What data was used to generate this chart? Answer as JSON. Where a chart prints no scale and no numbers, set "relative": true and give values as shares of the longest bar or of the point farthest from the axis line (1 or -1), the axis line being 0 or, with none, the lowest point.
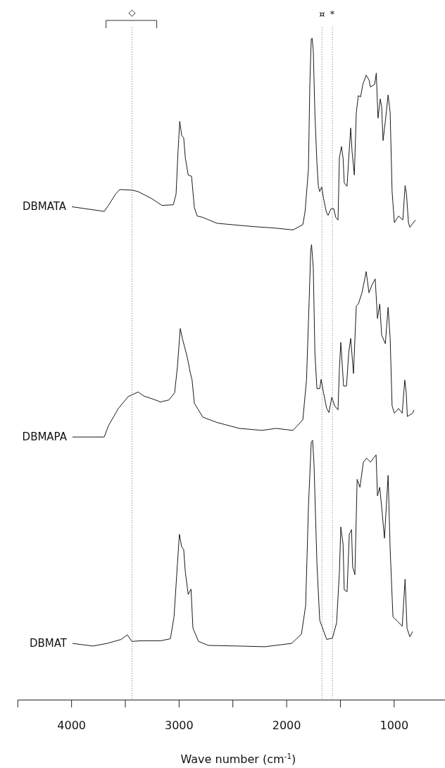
{
  "chart_data": {
    "type": "line",
    "relative": true,
    "xlabel": "Wave number (cm$^{-1}$)",
    "xlim": [
      4500,
      524
    ],
    "xticks": [
      {
        "value": 4500,
        "label": null
      },
      4000,
      {
        "value": 3500,
        "label": null
      },
      3000,
      {
        "value": 2500,
        "label": null
      },
      2000,
      {
        "value": 1500,
        "label": null
      },
      1000
    ],
    "legend": false,
    "ref_lines": [
      {
        "axis": "x",
        "value": 3434,
        "label": "◇",
        "color": "#9a9a9a",
        "line_style": "dotted"
      },
      {
        "axis": "x",
        "value": 1668,
        "label": "¤",
        "color": "#9a9a9a",
        "line_style": "dotted"
      },
      {
        "axis": "x",
        "value": 1571,
        "label": "*",
        "color": "#9a9a9a",
        "line_style": "dotted"
      }
    ],
    "series": [
      {
        "name": "DBMATA",
        "color": "#1a1a1a",
        "x": [
          3994,
          3693,
          3654,
          3588,
          3549,
          3431,
          3379,
          3248,
          3156,
          3051,
          3025,
          3007,
          2991,
          2973,
          2954,
          2939,
          2912,
          2881,
          2855,
          2829,
          2776,
          2645,
          2305,
          2121,
          1938,
          1846,
          1825,
          1794,
          1781,
          1768,
          1760,
          1749,
          1734,
          1715,
          1702,
          1689,
          1671,
          1655,
          1629,
          1611,
          1584,
          1558,
          1540,
          1519,
          1506,
          1487,
          1472,
          1461,
          1435,
          1419,
          1401,
          1388,
          1367,
          1349,
          1330,
          1309,
          1288,
          1257,
          1231,
          1218,
          1178,
          1163,
          1147,
          1126,
          1113,
          1100,
          1079,
          1053,
          1034,
          1016,
          995,
          956,
          916,
          895,
          882,
          864,
          851,
          799
        ],
        "values": [
          0.745,
          0.738,
          0.747,
          0.764,
          0.771,
          0.77,
          0.768,
          0.757,
          0.747,
          0.748,
          0.764,
          0.828,
          0.874,
          0.853,
          0.849,
          0.819,
          0.793,
          0.791,
          0.744,
          0.731,
          0.729,
          0.72,
          0.715,
          0.713,
          0.71,
          0.718,
          0.738,
          0.802,
          0.93,
          0.998,
          1.0,
          0.981,
          0.887,
          0.811,
          0.776,
          0.768,
          0.775,
          0.759,
          0.738,
          0.732,
          0.742,
          0.742,
          0.729,
          0.725,
          0.819,
          0.836,
          0.819,
          0.781,
          0.776,
          0.819,
          0.864,
          0.828,
          0.793,
          0.887,
          0.913,
          0.911,
          0.93,
          0.944,
          0.937,
          0.926,
          0.93,
          0.947,
          0.879,
          0.908,
          0.896,
          0.845,
          0.874,
          0.914,
          0.887,
          0.768,
          0.721,
          0.731,
          0.725,
          0.777,
          0.764,
          0.721,
          0.714,
          0.725
        ]
      },
      {
        "name": "DBMAPA",
        "color": "#1a1a1a",
        "x": [
          3988,
          3693,
          3654,
          3562,
          3471,
          3379,
          3326,
          3235,
          3169,
          3091,
          3038,
          3012,
          2986,
          2965,
          2947,
          2920,
          2894,
          2876,
          2855,
          2776,
          2645,
          2436,
          2226,
          2095,
          1938,
          1846,
          1812,
          1786,
          1773,
          1765,
          1749,
          1734,
          1715,
          1689,
          1676,
          1655,
          1624,
          1603,
          1577,
          1550,
          1519,
          1506,
          1493,
          1467,
          1440,
          1419,
          1401,
          1375,
          1349,
          1330,
          1296,
          1257,
          1231,
          1205,
          1173,
          1152,
          1131,
          1113,
          1079,
          1053,
          1034,
          1016,
          995,
          956,
          922,
          898,
          885,
          874,
          825,
          812
        ],
        "values": [
          0.397,
          0.397,
          0.414,
          0.44,
          0.458,
          0.465,
          0.459,
          0.454,
          0.45,
          0.453,
          0.464,
          0.504,
          0.561,
          0.545,
          0.534,
          0.517,
          0.495,
          0.483,
          0.448,
          0.427,
          0.419,
          0.41,
          0.407,
          0.41,
          0.407,
          0.423,
          0.483,
          0.61,
          0.678,
          0.688,
          0.653,
          0.525,
          0.47,
          0.47,
          0.484,
          0.465,
          0.44,
          0.434,
          0.457,
          0.444,
          0.438,
          0.5,
          0.54,
          0.474,
          0.474,
          0.525,
          0.546,
          0.493,
          0.595,
          0.598,
          0.615,
          0.647,
          0.615,
          0.626,
          0.636,
          0.576,
          0.598,
          0.551,
          0.538,
          0.593,
          0.546,
          0.444,
          0.433,
          0.44,
          0.433,
          0.483,
          0.465,
          0.428,
          0.433,
          0.438
        ]
      },
      {
        "name": "DBMAT",
        "color": "#1a1a1a",
        "x": [
          3988,
          3798,
          3667,
          3536,
          3478,
          3436,
          3353,
          3169,
          3078,
          3044,
          3012,
          2994,
          2973,
          2954,
          2939,
          2912,
          2886,
          2868,
          2816,
          2724,
          2436,
          2200,
          1951,
          1859,
          1820,
          1794,
          1768,
          1755,
          1742,
          1715,
          1689,
          1624,
          1571,
          1532,
          1506,
          1493,
          1472,
          1461,
          1435,
          1414,
          1393,
          1383,
          1362,
          1341,
          1315,
          1283,
          1252,
          1218,
          1165,
          1152,
          1131,
          1113,
          1087,
          1053,
          1034,
          1008,
          969,
          922,
          895,
          877,
          851,
          825
        ],
        "values": [
          0.085,
          0.081,
          0.085,
          0.091,
          0.098,
          0.088,
          0.089,
          0.089,
          0.092,
          0.125,
          0.206,
          0.25,
          0.231,
          0.227,
          0.193,
          0.159,
          0.167,
          0.108,
          0.088,
          0.082,
          0.081,
          0.08,
          0.085,
          0.099,
          0.142,
          0.291,
          0.389,
          0.392,
          0.355,
          0.206,
          0.12,
          0.091,
          0.093,
          0.116,
          0.193,
          0.261,
          0.235,
          0.166,
          0.163,
          0.25,
          0.257,
          0.201,
          0.189,
          0.333,
          0.321,
          0.359,
          0.365,
          0.359,
          0.37,
          0.308,
          0.321,
          0.291,
          0.244,
          0.339,
          0.227,
          0.125,
          0.119,
          0.111,
          0.182,
          0.108,
          0.095,
          0.103
        ]
      }
    ]
  }
}
